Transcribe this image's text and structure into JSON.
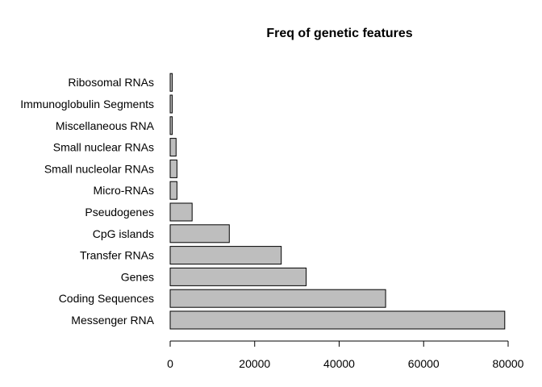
{
  "chart_data": {
    "type": "bar",
    "orientation": "horizontal",
    "title": "Freq of genetic features",
    "xlabel": "",
    "ylabel": "",
    "categories": [
      "Messenger RNA",
      "Coding Sequences",
      "Genes",
      "Transfer RNAs",
      "CpG islands",
      "Pseudogenes",
      "Micro-RNAs",
      "Small nucleolar RNAs",
      "Small nuclear RNAs",
      "Miscellaneous RNA",
      "Immunoglobulin Segments",
      "Ribosomal RNAs"
    ],
    "values": [
      79200,
      51000,
      32200,
      26300,
      14000,
      5200,
      1600,
      1600,
      1400,
      500,
      500,
      500
    ],
    "xlim": [
      0,
      80000
    ],
    "xticks": [
      0,
      20000,
      40000,
      60000,
      80000
    ],
    "grid": false,
    "colors": {
      "bar_fill": "#bebebe",
      "bar_stroke": "#000000"
    }
  }
}
